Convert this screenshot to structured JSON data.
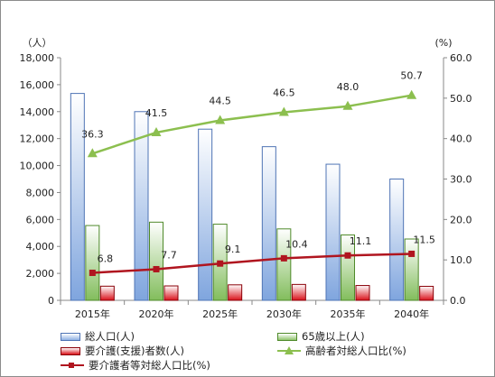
{
  "chart_data": {
    "type": "bar+line",
    "categories": [
      "2015年",
      "2020年",
      "2025年",
      "2030年",
      "2035年",
      "2040年"
    ],
    "left_axis": {
      "unit": "（人）",
      "ylim": [
        0,
        18000
      ],
      "ticks": [
        "0",
        "2,000",
        "4,000",
        "6,000",
        "8,000",
        "10,000",
        "12,000",
        "14,000",
        "16,000",
        "18,000"
      ]
    },
    "right_axis": {
      "unit": "(%)",
      "ylim": [
        0,
        60
      ],
      "ticks": [
        "0.0",
        "10.0",
        "20.0",
        "30.0",
        "40.0",
        "50.0",
        "60.0"
      ]
    },
    "series": [
      {
        "name": "総人口(人)",
        "kind": "bar",
        "axis": "left",
        "color": "#8fb1e3",
        "values": [
          15350,
          14000,
          12700,
          11400,
          10100,
          9000
        ]
      },
      {
        "name": "65歳以上(人)",
        "kind": "bar",
        "axis": "left",
        "color": "#8fc46b",
        "values": [
          5550,
          5800,
          5650,
          5300,
          4850,
          4550
        ]
      },
      {
        "name": "要介護(支援)者数(人)",
        "kind": "bar",
        "axis": "left",
        "color": "#d9111a",
        "values": [
          1050,
          1070,
          1150,
          1180,
          1100,
          1040
        ]
      },
      {
        "name": "高齢者対総人口比(%)",
        "kind": "line",
        "axis": "right",
        "color": "#8cbf4f",
        "marker": "triangle",
        "values": [
          36.3,
          41.5,
          44.5,
          46.5,
          48.0,
          50.7
        ],
        "labels": [
          "36.3",
          "41.5",
          "44.5",
          "46.5",
          "48.0",
          "50.7"
        ]
      },
      {
        "name": "要介護者等対総人口比(%)",
        "kind": "line",
        "axis": "right",
        "color": "#b0151f",
        "marker": "square",
        "values": [
          6.8,
          7.7,
          9.1,
          10.4,
          11.1,
          11.5
        ],
        "labels": [
          "6.8",
          "7.7",
          "9.1",
          "10.4",
          "11.1",
          "11.5"
        ]
      }
    ],
    "legend": {
      "position": "bottom",
      "items": [
        "総人口(人)",
        "65歳以上(人)",
        "要介護(支援)者数(人)",
        "高齢者対総人口比(%)",
        "要介護者等対総人口比(%)"
      ]
    },
    "grid": false
  }
}
